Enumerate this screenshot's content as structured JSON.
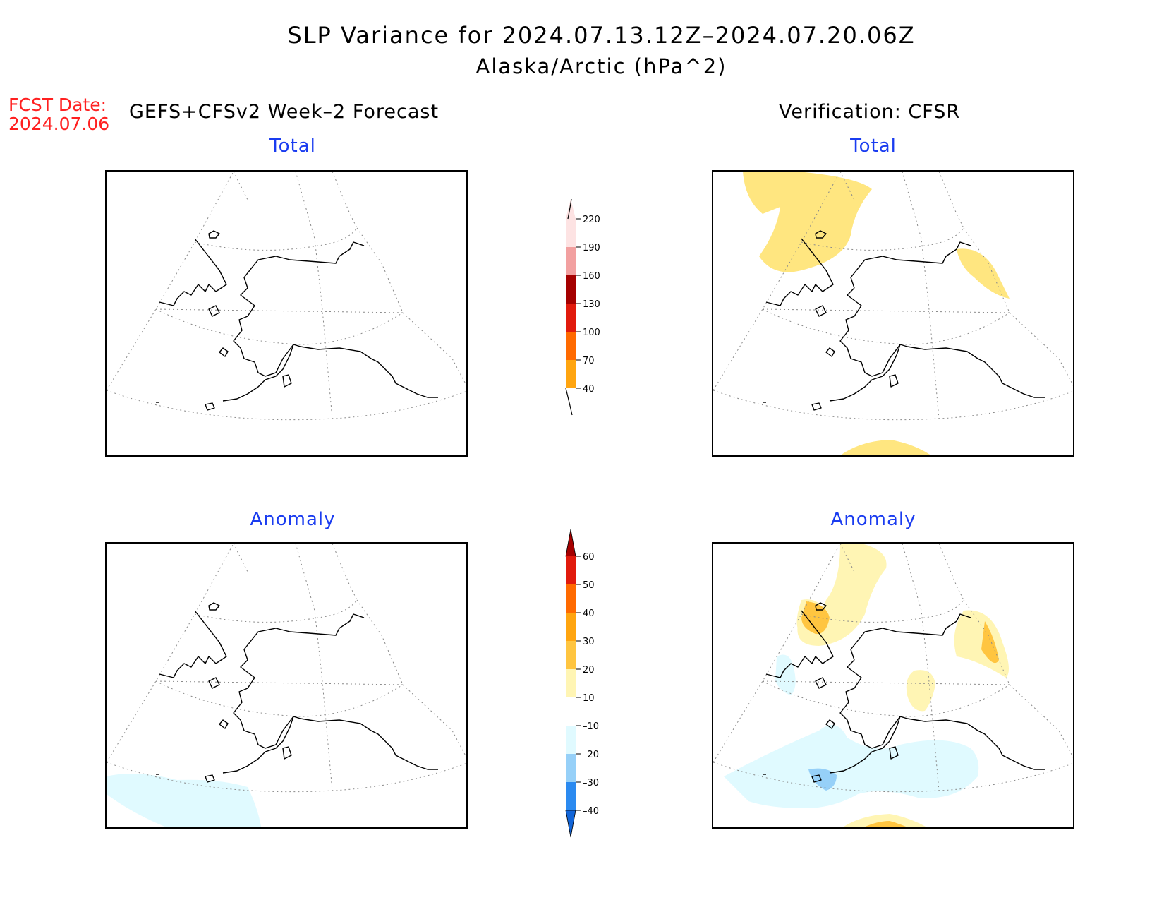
{
  "title": {
    "line1": "SLP Variance for 2024.07.13.12Z–2024.07.20.06Z",
    "line2": "Alaska/Arctic (hPa^2)"
  },
  "fcst_date": {
    "label": "FCST Date:",
    "value": "2024.07.06"
  },
  "headers": {
    "left": "GEFS+CFSv2 Week–2 Forecast",
    "right": "Verification: CFSR"
  },
  "panels": {
    "forecast_total": {
      "title": "Total"
    },
    "verification_total": {
      "title": "Total"
    },
    "forecast_anomaly": {
      "title": "Anomaly"
    },
    "verification_anomaly": {
      "title": "Anomaly"
    }
  },
  "colorbars": {
    "total": {
      "labels": [
        "40",
        "70",
        "100",
        "130",
        "160",
        "190",
        "220"
      ],
      "colors": [
        "#ffe680",
        "#ffa510",
        "#ff6a00",
        "#e11a0d",
        "#a50000",
        "#f2a0a0",
        "#fde3e3"
      ]
    },
    "anomaly": {
      "labels": [
        "–40",
        "–30",
        "–20",
        "–10",
        "10",
        "20",
        "30",
        "40",
        "50",
        "60"
      ],
      "colors": [
        "#1265d8",
        "#2b8af0",
        "#96d0f8",
        "#e0faff",
        "#ffffff",
        "#fff5b4",
        "#ffc540",
        "#ffa510",
        "#ff6a00",
        "#e11a0d",
        "#a50000"
      ]
    }
  },
  "map_colors": {
    "total_light": "#ffe680",
    "anom_pos1": "#fff5b4",
    "anom_pos2": "#ffc540",
    "anom_neg1": "#e0faff",
    "anom_neg2": "#96d0f8"
  }
}
